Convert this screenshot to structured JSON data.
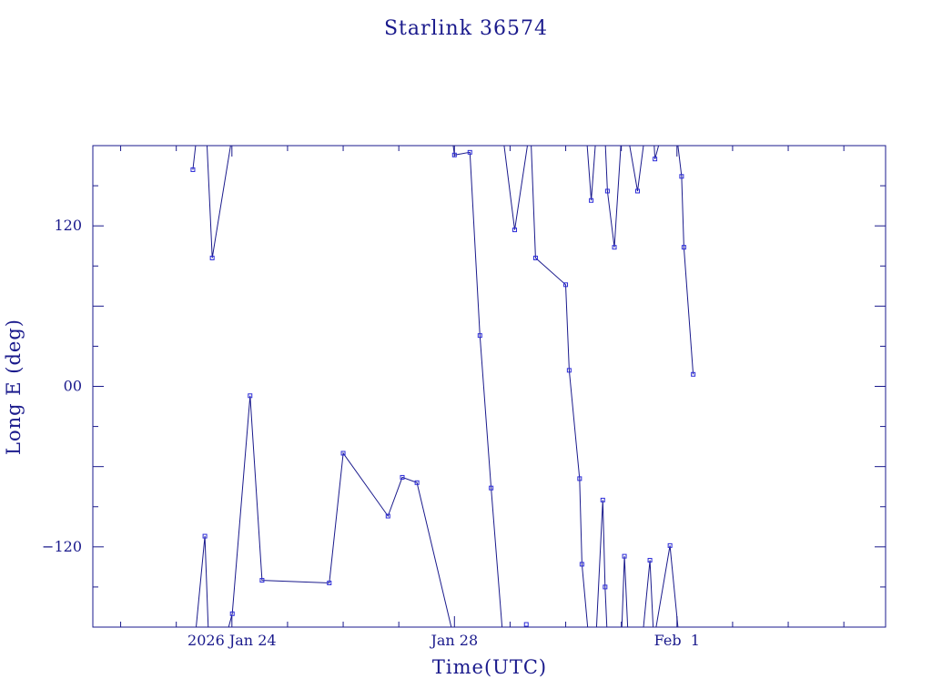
{
  "chart_data": {
    "type": "line",
    "title": "Starlink 36574",
    "xlabel": "Time(UTC)",
    "ylabel": "Long E (deg)",
    "colors": {
      "line": "#1a1a8c",
      "marker": "#2a2ad8",
      "text": "#1a1a8c",
      "axis": "#1a1a8c"
    },
    "xlim": [
      "2026-01-21 12:00",
      "2026-02-04 18:00"
    ],
    "ylim": [
      -180,
      180
    ],
    "x_ticks": [
      {
        "label": "2026 Jan 24",
        "value": "2026-01-24 00:00"
      },
      {
        "label": "Jan 28",
        "value": "2026-01-28 00:00"
      },
      {
        "label": "Feb  1",
        "value": "2026-02-01 00:00"
      }
    ],
    "y_ticks": [
      {
        "label": "−120",
        "value": -120
      },
      {
        "label": "00",
        "value": 0
      },
      {
        "label": "120",
        "value": 120
      }
    ],
    "grid": false,
    "segments": [
      [
        {
          "x": "2026-01-23 07:10",
          "y": 162
        },
        {
          "x": "2026-01-23 09:00",
          "y": 190
        },
        {
          "x": "2026-01-23 13:00",
          "y": 190
        },
        {
          "x": "2026-01-23 15:30",
          "y": 96
        },
        {
          "x": "2026-01-24 00:00",
          "y": 186
        }
      ],
      [
        {
          "x": "2026-01-23 08:00",
          "y": -190
        },
        {
          "x": "2026-01-23 12:20",
          "y": -112
        },
        {
          "x": "2026-01-23 14:00",
          "y": -190
        },
        {
          "x": "2026-01-23 21:00",
          "y": -190
        },
        {
          "x": "2026-01-24 00:10",
          "y": -170
        },
        {
          "x": "2026-01-24 07:50",
          "y": -7
        },
        {
          "x": "2026-01-24 13:00",
          "y": -145
        },
        {
          "x": "2026-01-25 18:00",
          "y": -147
        },
        {
          "x": "2026-01-26 00:00",
          "y": -50
        },
        {
          "x": "2026-01-26 19:20",
          "y": -97
        },
        {
          "x": "2026-01-27 01:30",
          "y": -68
        },
        {
          "x": "2026-01-27 07:50",
          "y": -72
        },
        {
          "x": "2026-01-28 00:00",
          "y": -190
        }
      ],
      [
        {
          "x": "2026-01-27 23:00",
          "y": 186
        },
        {
          "x": "2026-01-28 00:00",
          "y": 173
        },
        {
          "x": "2026-01-28 06:40",
          "y": 175
        },
        {
          "x": "2026-01-28 11:00",
          "y": 38
        },
        {
          "x": "2026-01-28 15:50",
          "y": -76
        },
        {
          "x": "2026-01-28 21:00",
          "y": -190
        }
      ],
      [
        {
          "x": "2026-01-28 21:00",
          "y": 186
        },
        {
          "x": "2026-01-29 02:00",
          "y": 117
        },
        {
          "x": "2026-01-29 08:00",
          "y": 186
        }
      ],
      [
        {
          "x": "2026-01-29 09:00",
          "y": 186
        },
        {
          "x": "2026-01-29 11:00",
          "y": 96
        },
        {
          "x": "2026-01-30 00:00",
          "y": 76
        },
        {
          "x": "2026-01-30 01:30",
          "y": 12
        },
        {
          "x": "2026-01-30 06:00",
          "y": -69
        },
        {
          "x": "2026-01-30 07:00",
          "y": -133
        },
        {
          "x": "2026-01-30 10:00",
          "y": -190
        }
      ],
      [
        {
          "x": "2026-01-30 09:00",
          "y": 186
        },
        {
          "x": "2026-01-30 11:00",
          "y": 139
        },
        {
          "x": "2026-01-30 13:00",
          "y": 186
        }
      ],
      [
        {
          "x": "2026-01-30 13:00",
          "y": -190
        },
        {
          "x": "2026-01-30 16:00",
          "y": -85
        },
        {
          "x": "2026-01-30 17:00",
          "y": -150
        },
        {
          "x": "2026-01-30 18:00",
          "y": -190
        }
      ],
      [
        {
          "x": "2026-01-30 17:00",
          "y": 186
        },
        {
          "x": "2026-01-30 18:00",
          "y": 146
        },
        {
          "x": "2026-01-30 21:00",
          "y": 104
        },
        {
          "x": "2026-01-31 00:00",
          "y": 186
        }
      ],
      [
        {
          "x": "2026-01-31 00:00",
          "y": -190
        },
        {
          "x": "2026-01-31 01:20",
          "y": -127
        },
        {
          "x": "2026-01-31 03:00",
          "y": -190
        }
      ],
      [
        {
          "x": "2026-01-31 03:00",
          "y": 186
        },
        {
          "x": "2026-01-31 07:00",
          "y": 146
        },
        {
          "x": "2026-01-31 10:00",
          "y": 186
        }
      ],
      [
        {
          "x": "2026-01-31 09:00",
          "y": -190
        },
        {
          "x": "2026-01-31 12:20",
          "y": -130
        },
        {
          "x": "2026-01-31 14:00",
          "y": -190
        }
      ],
      [
        {
          "x": "2026-01-31 14:00",
          "y": 186
        },
        {
          "x": "2026-01-31 14:30",
          "y": 170
        },
        {
          "x": "2026-01-31 17:00",
          "y": 186
        }
      ],
      [
        {
          "x": "2026-01-31 15:00",
          "y": -180
        },
        {
          "x": "2026-01-31 21:00",
          "y": -119
        },
        {
          "x": "2026-02-01 01:00",
          "y": -190
        }
      ],
      [
        {
          "x": "2026-02-01 00:00",
          "y": 186
        },
        {
          "x": "2026-02-01 02:00",
          "y": 157
        },
        {
          "x": "2026-02-01 03:00",
          "y": 104
        },
        {
          "x": "2026-02-01 07:00",
          "y": 9
        }
      ]
    ],
    "isolated_points": [
      {
        "x": "2026-01-29 07:00",
        "y": -178
      }
    ]
  }
}
